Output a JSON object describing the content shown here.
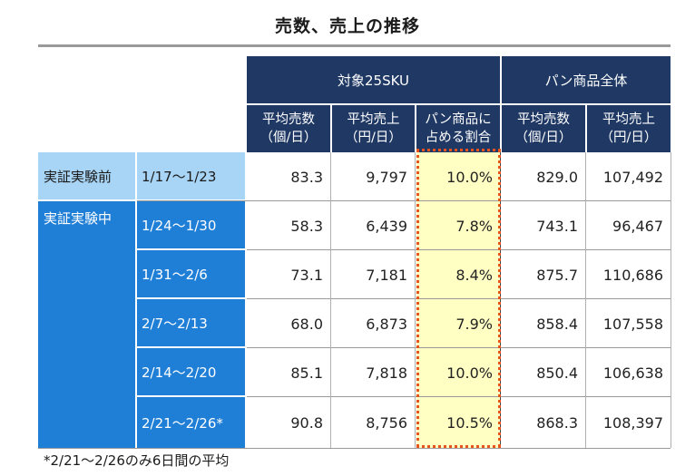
{
  "title": "売数、売上の推移",
  "header": {
    "group_target": "対象25SKU",
    "group_all": "パン商品全体",
    "cols": [
      {
        "l1": "平均売数",
        "l2": "（個/日）"
      },
      {
        "l1": "平均売上",
        "l2": "（円/日）"
      },
      {
        "l1": "パン商品に",
        "l2": "占める割合"
      },
      {
        "l1": "平均売数",
        "l2": "（個/日）"
      },
      {
        "l1": "平均売上",
        "l2": "（円/日）"
      }
    ]
  },
  "groups": {
    "pre": "実証実験前",
    "during": "実証実験中"
  },
  "rows": [
    {
      "period": "1/17～1/23",
      "v": [
        "83.3",
        "9,797",
        "10.0%",
        "829.0",
        "107,492"
      ]
    },
    {
      "period": "1/24～1/30",
      "v": [
        "58.3",
        "6,439",
        "7.8%",
        "743.1",
        "96,467"
      ]
    },
    {
      "period": "1/31～2/6",
      "v": [
        "73.1",
        "7,181",
        "8.4%",
        "875.7",
        "110,686"
      ]
    },
    {
      "period": "2/7～2/13",
      "v": [
        "68.0",
        "6,873",
        "7.9%",
        "858.4",
        "107,558"
      ]
    },
    {
      "period": "2/14～2/20",
      "v": [
        "85.1",
        "7,818",
        "10.0%",
        "850.4",
        "106,638"
      ]
    },
    {
      "period": "2/21～2/26*",
      "v": [
        "90.8",
        "8,756",
        "10.5%",
        "868.3",
        "108,397"
      ]
    }
  ],
  "footnote": "*2/21～2/26のみ6日間の平均",
  "colors": {
    "header": "#1f3864",
    "label": "#1f7ed6",
    "label_pre": "#a8d4f5",
    "highlight": "#ffffc4",
    "dash": "#e8541c"
  }
}
